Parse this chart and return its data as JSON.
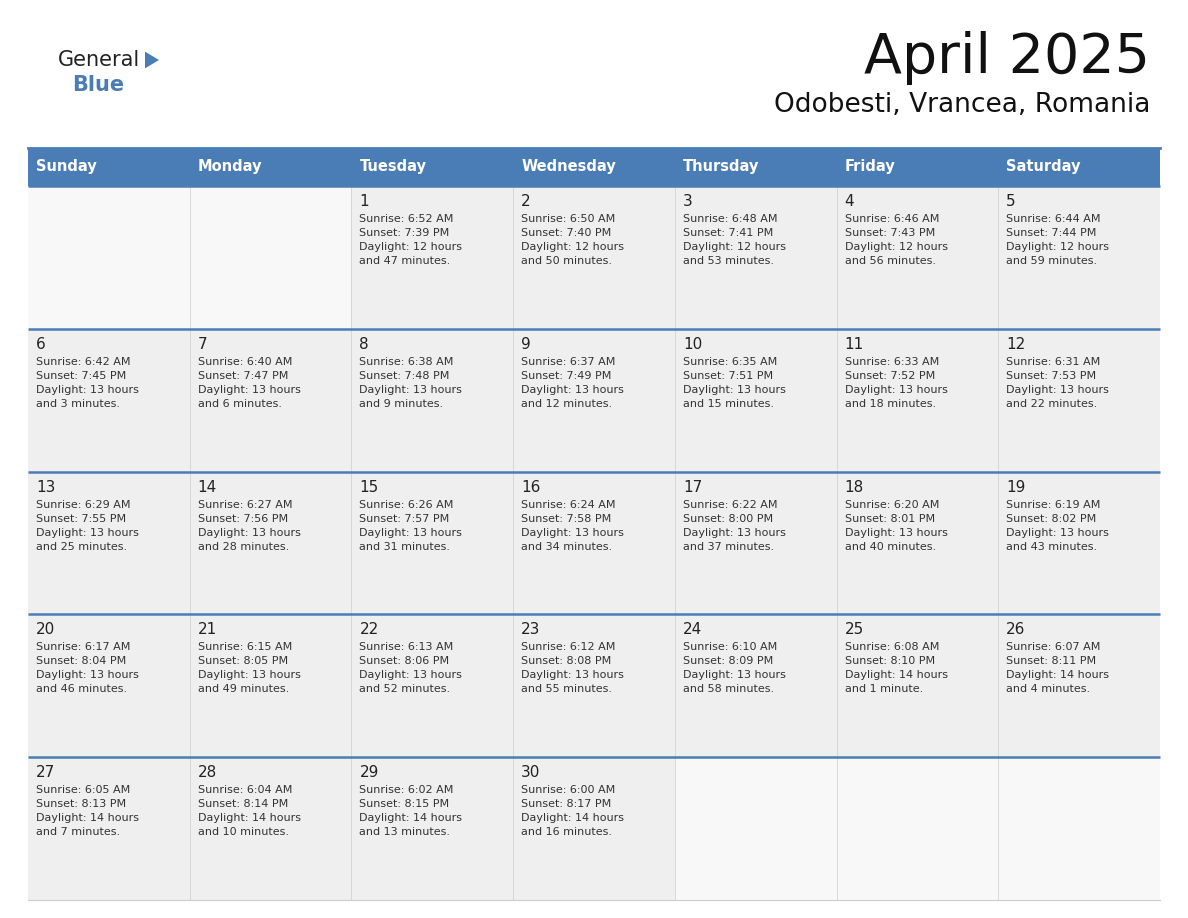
{
  "title": "April 2025",
  "subtitle": "Odobesti, Vrancea, Romania",
  "header_color": "#4a7db5",
  "header_text_color": "#FFFFFF",
  "background_color": "#FFFFFF",
  "cell_bg_color": "#EFEFEF",
  "cell_empty_bg": "#F8F8F8",
  "separator_color": "#4a7db5",
  "day_names": [
    "Sunday",
    "Monday",
    "Tuesday",
    "Wednesday",
    "Thursday",
    "Friday",
    "Saturday"
  ],
  "weeks": [
    [
      {
        "day": "",
        "info": ""
      },
      {
        "day": "",
        "info": ""
      },
      {
        "day": "1",
        "info": "Sunrise: 6:52 AM\nSunset: 7:39 PM\nDaylight: 12 hours\nand 47 minutes."
      },
      {
        "day": "2",
        "info": "Sunrise: 6:50 AM\nSunset: 7:40 PM\nDaylight: 12 hours\nand 50 minutes."
      },
      {
        "day": "3",
        "info": "Sunrise: 6:48 AM\nSunset: 7:41 PM\nDaylight: 12 hours\nand 53 minutes."
      },
      {
        "day": "4",
        "info": "Sunrise: 6:46 AM\nSunset: 7:43 PM\nDaylight: 12 hours\nand 56 minutes."
      },
      {
        "day": "5",
        "info": "Sunrise: 6:44 AM\nSunset: 7:44 PM\nDaylight: 12 hours\nand 59 minutes."
      }
    ],
    [
      {
        "day": "6",
        "info": "Sunrise: 6:42 AM\nSunset: 7:45 PM\nDaylight: 13 hours\nand 3 minutes."
      },
      {
        "day": "7",
        "info": "Sunrise: 6:40 AM\nSunset: 7:47 PM\nDaylight: 13 hours\nand 6 minutes."
      },
      {
        "day": "8",
        "info": "Sunrise: 6:38 AM\nSunset: 7:48 PM\nDaylight: 13 hours\nand 9 minutes."
      },
      {
        "day": "9",
        "info": "Sunrise: 6:37 AM\nSunset: 7:49 PM\nDaylight: 13 hours\nand 12 minutes."
      },
      {
        "day": "10",
        "info": "Sunrise: 6:35 AM\nSunset: 7:51 PM\nDaylight: 13 hours\nand 15 minutes."
      },
      {
        "day": "11",
        "info": "Sunrise: 6:33 AM\nSunset: 7:52 PM\nDaylight: 13 hours\nand 18 minutes."
      },
      {
        "day": "12",
        "info": "Sunrise: 6:31 AM\nSunset: 7:53 PM\nDaylight: 13 hours\nand 22 minutes."
      }
    ],
    [
      {
        "day": "13",
        "info": "Sunrise: 6:29 AM\nSunset: 7:55 PM\nDaylight: 13 hours\nand 25 minutes."
      },
      {
        "day": "14",
        "info": "Sunrise: 6:27 AM\nSunset: 7:56 PM\nDaylight: 13 hours\nand 28 minutes."
      },
      {
        "day": "15",
        "info": "Sunrise: 6:26 AM\nSunset: 7:57 PM\nDaylight: 13 hours\nand 31 minutes."
      },
      {
        "day": "16",
        "info": "Sunrise: 6:24 AM\nSunset: 7:58 PM\nDaylight: 13 hours\nand 34 minutes."
      },
      {
        "day": "17",
        "info": "Sunrise: 6:22 AM\nSunset: 8:00 PM\nDaylight: 13 hours\nand 37 minutes."
      },
      {
        "day": "18",
        "info": "Sunrise: 6:20 AM\nSunset: 8:01 PM\nDaylight: 13 hours\nand 40 minutes."
      },
      {
        "day": "19",
        "info": "Sunrise: 6:19 AM\nSunset: 8:02 PM\nDaylight: 13 hours\nand 43 minutes."
      }
    ],
    [
      {
        "day": "20",
        "info": "Sunrise: 6:17 AM\nSunset: 8:04 PM\nDaylight: 13 hours\nand 46 minutes."
      },
      {
        "day": "21",
        "info": "Sunrise: 6:15 AM\nSunset: 8:05 PM\nDaylight: 13 hours\nand 49 minutes."
      },
      {
        "day": "22",
        "info": "Sunrise: 6:13 AM\nSunset: 8:06 PM\nDaylight: 13 hours\nand 52 minutes."
      },
      {
        "day": "23",
        "info": "Sunrise: 6:12 AM\nSunset: 8:08 PM\nDaylight: 13 hours\nand 55 minutes."
      },
      {
        "day": "24",
        "info": "Sunrise: 6:10 AM\nSunset: 8:09 PM\nDaylight: 13 hours\nand 58 minutes."
      },
      {
        "day": "25",
        "info": "Sunrise: 6:08 AM\nSunset: 8:10 PM\nDaylight: 14 hours\nand 1 minute."
      },
      {
        "day": "26",
        "info": "Sunrise: 6:07 AM\nSunset: 8:11 PM\nDaylight: 14 hours\nand 4 minutes."
      }
    ],
    [
      {
        "day": "27",
        "info": "Sunrise: 6:05 AM\nSunset: 8:13 PM\nDaylight: 14 hours\nand 7 minutes."
      },
      {
        "day": "28",
        "info": "Sunrise: 6:04 AM\nSunset: 8:14 PM\nDaylight: 14 hours\nand 10 minutes."
      },
      {
        "day": "29",
        "info": "Sunrise: 6:02 AM\nSunset: 8:15 PM\nDaylight: 14 hours\nand 13 minutes."
      },
      {
        "day": "30",
        "info": "Sunrise: 6:00 AM\nSunset: 8:17 PM\nDaylight: 14 hours\nand 16 minutes."
      },
      {
        "day": "",
        "info": ""
      },
      {
        "day": "",
        "info": ""
      },
      {
        "day": "",
        "info": ""
      }
    ]
  ],
  "logo_general_color": "#222222",
  "logo_blue_color": "#4a7db5",
  "logo_triangle_color": "#4a7db5"
}
